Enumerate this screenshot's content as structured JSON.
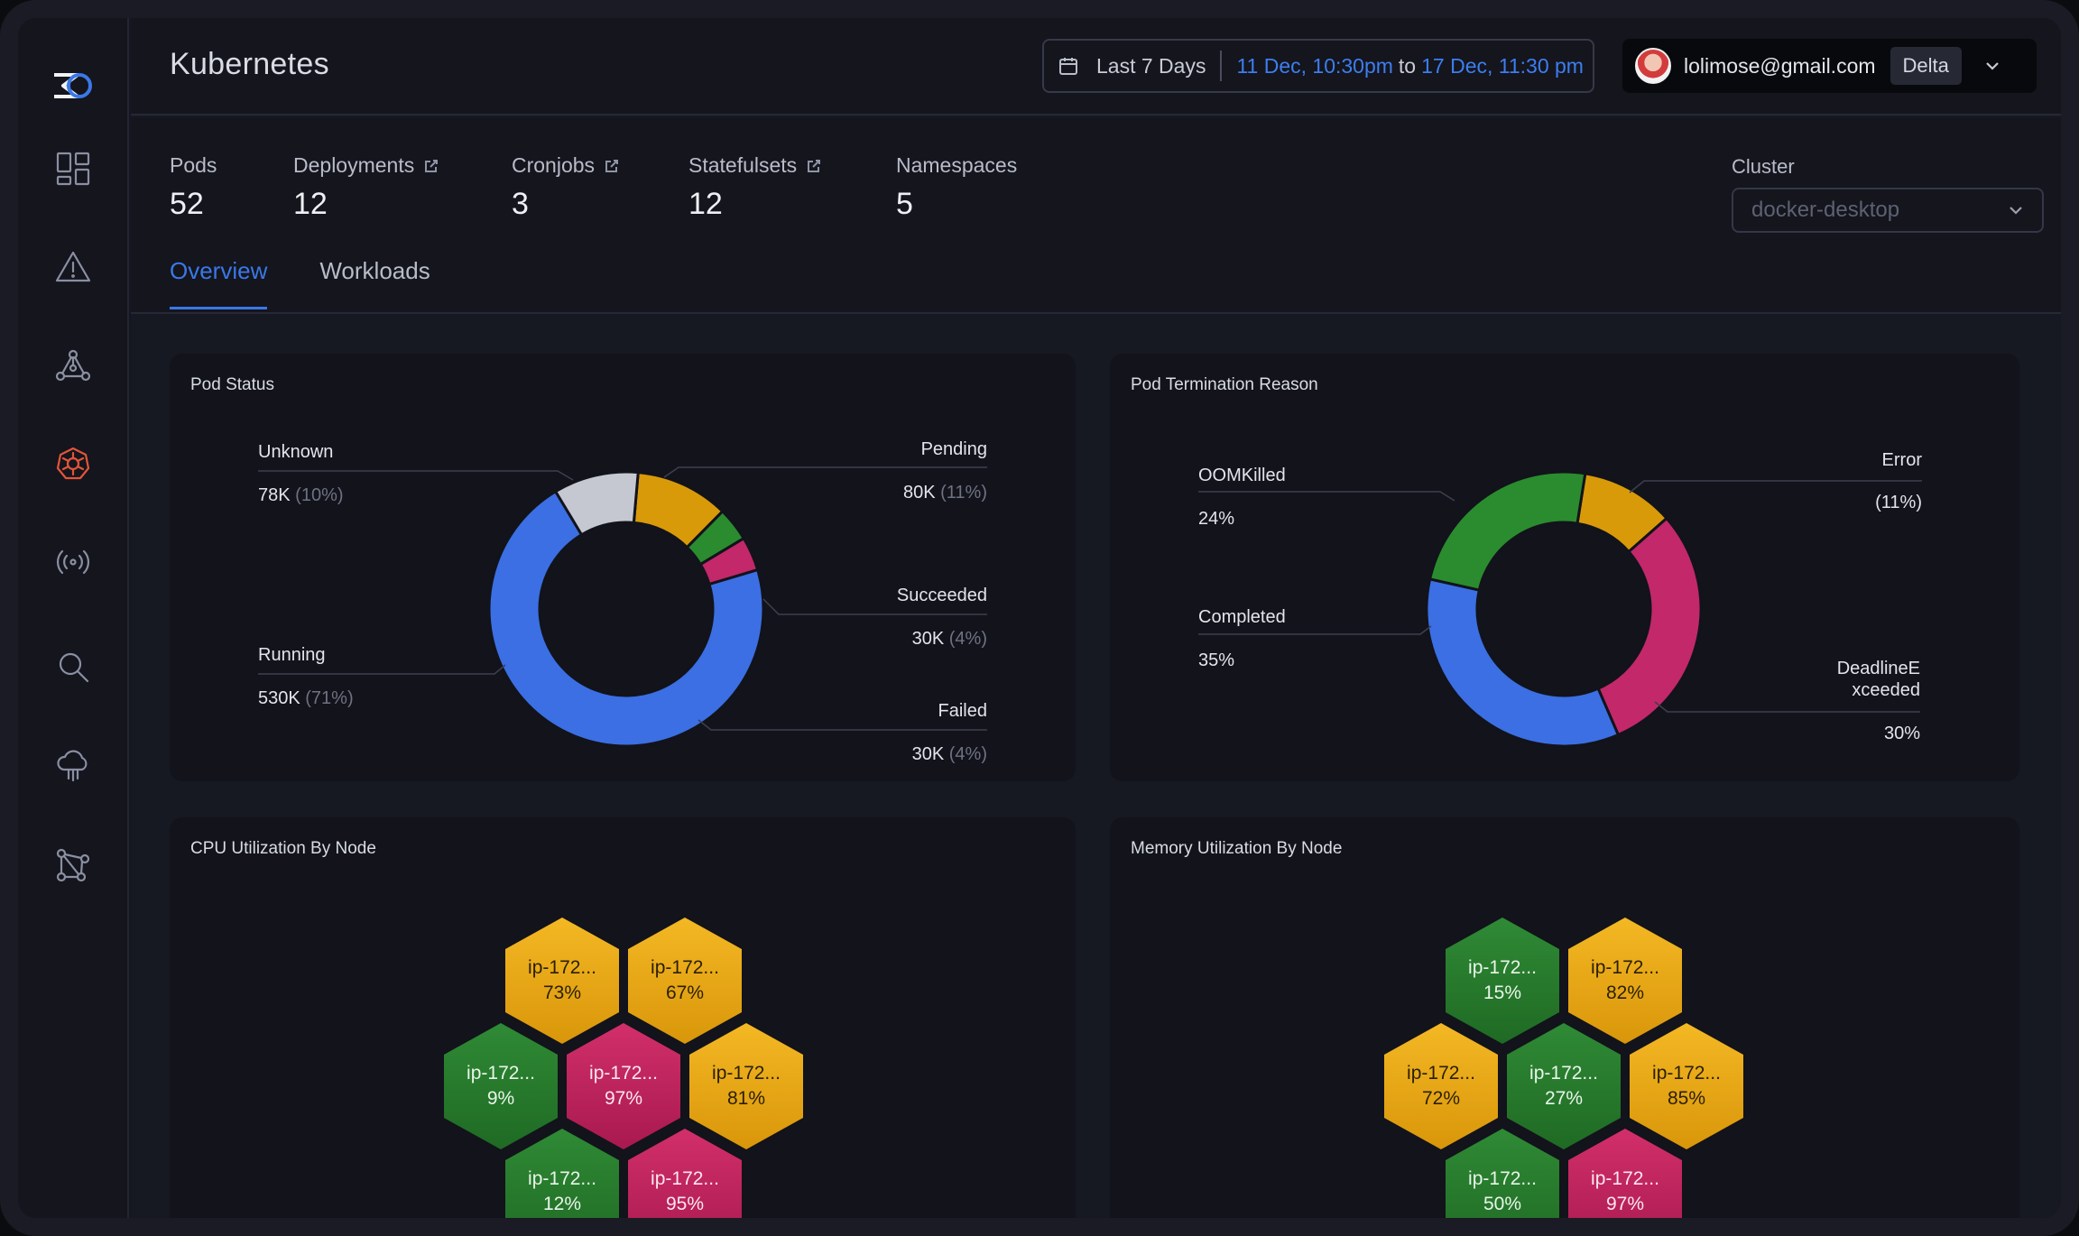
{
  "app": {
    "title": "Kubernetes"
  },
  "date_range": {
    "preset": "Last 7 Days",
    "from": "11 Dec, 10:30pm",
    "to_word": "to",
    "to": "17 Dec, 11:30 pm"
  },
  "user": {
    "email": "lolimose@gmail.com",
    "org": "Delta"
  },
  "sidebar": {
    "items": [
      {
        "icon": "dashboard-icon"
      },
      {
        "icon": "alert-icon"
      },
      {
        "icon": "topology-icon"
      },
      {
        "icon": "kubernetes-icon",
        "active": true
      },
      {
        "icon": "broadcast-icon"
      },
      {
        "icon": "search-icon"
      },
      {
        "icon": "cloud-icon"
      },
      {
        "icon": "graph-icon"
      }
    ]
  },
  "stats": [
    {
      "label": "Pods",
      "value": "52",
      "external": false
    },
    {
      "label": "Deployments",
      "value": "12",
      "external": true
    },
    {
      "label": "Cronjobs",
      "value": "3",
      "external": true
    },
    {
      "label": "Statefulsets",
      "value": "12",
      "external": true
    },
    {
      "label": "Namespaces",
      "value": "5",
      "external": false
    }
  ],
  "cluster": {
    "label": "Cluster",
    "value": "docker-desktop"
  },
  "tabs": [
    {
      "label": "Overview",
      "active": true
    },
    {
      "label": "Workloads",
      "active": false
    }
  ],
  "colors": {
    "blue": "#3b6fe3",
    "yellow": "#d99a0a",
    "green": "#2a8c2e",
    "pink": "#c2286a",
    "gray": "#c5c8d0",
    "accent": "#3b78e7",
    "active_nav": "#e2553a"
  },
  "pod_status": {
    "title": "Pod Status",
    "chart_data": {
      "type": "pie",
      "segments": [
        {
          "name": "Unknown",
          "value": "78K",
          "percent": "(10%)",
          "pct": 10,
          "color": "#c5c8d0"
        },
        {
          "name": "Pending",
          "value": "80K",
          "percent": "(11%)",
          "pct": 11,
          "color": "#d99a0a"
        },
        {
          "name": "Succeeded",
          "value": "30K",
          "percent": "(4%)",
          "pct": 4,
          "color": "#2a8c2e"
        },
        {
          "name": "Failed",
          "value": "30K",
          "percent": "(4%)",
          "pct": 4,
          "color": "#c2286a"
        },
        {
          "name": "Running",
          "value": "530K",
          "percent": "(71%)",
          "pct": 71,
          "color": "#3b6fe3"
        }
      ]
    }
  },
  "pod_termination": {
    "title": "Pod Termination Reason",
    "chart_data": {
      "type": "pie",
      "segments": [
        {
          "name": "OOMKilled",
          "value": "24%",
          "pct": 24,
          "color": "#2a8c2e"
        },
        {
          "name": "Error",
          "value": "(11%)",
          "pct": 11,
          "color": "#d99a0a"
        },
        {
          "name": "DeadlineExceeded",
          "label_lines": [
            "DeadlineE",
            "xceeded"
          ],
          "value": "30%",
          "pct": 30,
          "color": "#c2286a"
        },
        {
          "name": "Completed",
          "value": "35%",
          "pct": 35,
          "color": "#3b6fe3"
        }
      ]
    }
  },
  "cpu_util": {
    "title": "CPU Utilization By Node",
    "nodes": [
      {
        "name": "ip-172...",
        "value": "73%",
        "color": "yellow"
      },
      {
        "name": "ip-172...",
        "value": "67%",
        "color": "yellow"
      },
      {
        "name": "ip-172...",
        "value": "9%",
        "color": "green"
      },
      {
        "name": "ip-172...",
        "value": "97%",
        "color": "pink"
      },
      {
        "name": "ip-172...",
        "value": "81%",
        "color": "yellow"
      },
      {
        "name": "ip-172...",
        "value": "12%",
        "color": "green"
      },
      {
        "name": "ip-172...",
        "value": "95%",
        "color": "pink"
      }
    ]
  },
  "mem_util": {
    "title": "Memory Utilization By Node",
    "nodes": [
      {
        "name": "ip-172...",
        "value": "15%",
        "color": "green"
      },
      {
        "name": "ip-172...",
        "value": "82%",
        "color": "yellow"
      },
      {
        "name": "ip-172...",
        "value": "72%",
        "color": "yellow"
      },
      {
        "name": "ip-172...",
        "value": "27%",
        "color": "green"
      },
      {
        "name": "ip-172...",
        "value": "85%",
        "color": "yellow"
      },
      {
        "name": "ip-172...",
        "value": "50%",
        "color": "green"
      },
      {
        "name": "ip-172...",
        "value": "97%",
        "color": "pink"
      }
    ]
  }
}
